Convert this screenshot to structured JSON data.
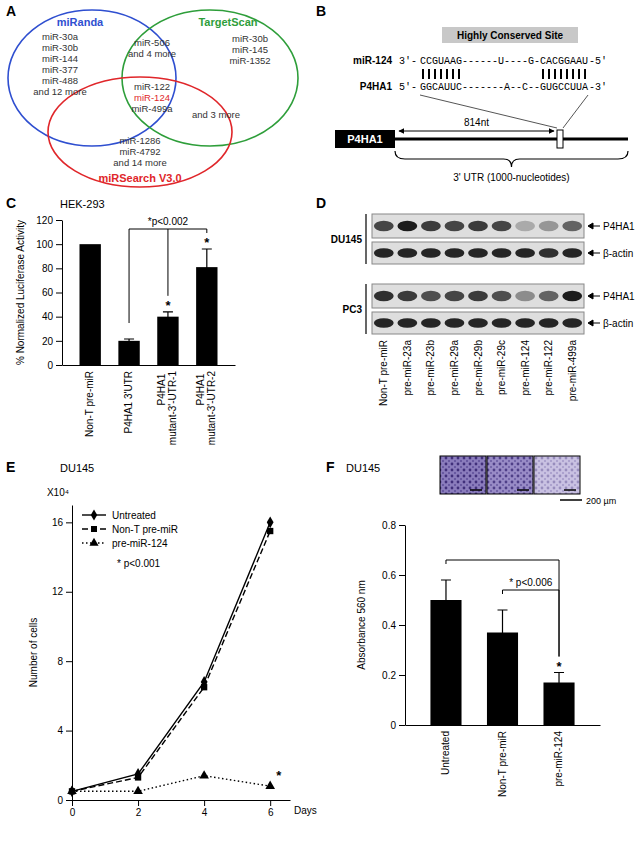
{
  "chart_data": [
    {
      "panel": "A",
      "type": "venn",
      "sets": [
        {
          "name": "miRanda",
          "color": "#2f4fd0"
        },
        {
          "name": "TargetScan",
          "color": "#2e9e3a"
        },
        {
          "name": "miRSearch V3.0",
          "color": "#e0262a"
        }
      ],
      "regions": [
        {
          "sets": [
            "miRanda"
          ],
          "labels": [
            "miR-30a",
            "miR-30b",
            "miR-144",
            "miR-377",
            "miR-488",
            "and 12 more"
          ]
        },
        {
          "sets": [
            "TargetScan"
          ],
          "labels": [
            "miR-30b",
            "miR-145",
            "miR-1352"
          ]
        },
        {
          "sets": [
            "miRanda",
            "TargetScan"
          ],
          "labels": [
            "miR-506",
            "and 4 more"
          ]
        },
        {
          "sets": [
            "miRanda",
            "TargetScan",
            "miRSearch V3.0"
          ],
          "labels": [
            "miR-122",
            "miR-124",
            "miR-499a"
          ],
          "colors": [
            "#333333",
            "#e0262a",
            "#333333"
          ]
        },
        {
          "sets": [
            "TargetScan",
            "miRSearch V3.0"
          ],
          "labels": [
            "and 3 more"
          ]
        },
        {
          "sets": [
            "miRSearch V3.0"
          ],
          "labels": [
            "miR-1286",
            "miR-4792",
            "and 14 more"
          ]
        }
      ]
    },
    {
      "panel": "B",
      "type": "diagram",
      "gene": "P4HA1",
      "site_label": "Highly Conserved Site",
      "alignment": [
        {
          "name": "miR-124",
          "start": "3'-",
          "sequence": "CCGUAAG------U----G-CACGGAAU",
          "end": "-5'"
        },
        {
          "name": "P4HA1",
          "start": "5'-",
          "sequence": "GGCAUUC-------A--C--GUGCCUUA",
          "end": "-3'"
        }
      ],
      "distance_label": "814nt",
      "utr_label": "3' UTR (1000-nucleotides)"
    },
    {
      "panel": "C",
      "type": "bar",
      "title": "HEK-293",
      "categories": [
        "Non-T pre-miR",
        "P4HA1 3'UTR",
        "P4HA1 mutant-3'-UTR-1",
        "P4HA1 mutant-3'-UTR-2"
      ],
      "values": [
        100,
        20,
        40,
        81
      ],
      "errors": [
        null,
        1.5,
        4,
        15
      ],
      "color": "#000000",
      "ylabel": "% Normalized Luciferase Activity",
      "ylim": [
        0,
        120
      ],
      "yticks": [
        0,
        20,
        40,
        60,
        80,
        100,
        120
      ],
      "significance": [
        null,
        null,
        "*",
        "*"
      ],
      "comparisons": [
        {
          "groups": [
            "P4HA1 3'UTR",
            "P4HA1 mutant-3'-UTR-1",
            "P4HA1 mutant-3'-UTR-2"
          ],
          "label": "*p<0.002"
        }
      ]
    },
    {
      "panel": "D",
      "type": "blot",
      "lanes": [
        "Non-T pre-miR",
        "pre-miR-23a",
        "pre-miR-23b",
        "pre-miR-29a",
        "pre-miR-29b",
        "pre-miR-29c",
        "pre-miR-124",
        "pre-miR-122",
        "pre-miR-499a"
      ],
      "blots": [
        {
          "cell_line": "DU145",
          "rows": [
            {
              "protein": "P4HA1",
              "intensity": [
                0.75,
                0.95,
                0.8,
                0.75,
                0.8,
                0.75,
                0.25,
                0.35,
                0.6
              ]
            },
            {
              "protein": "β-actin",
              "intensity": [
                0.9,
                0.9,
                0.9,
                0.9,
                0.9,
                0.9,
                0.9,
                0.85,
                0.9
              ]
            }
          ]
        },
        {
          "cell_line": "PC3",
          "rows": [
            {
              "protein": "P4HA1",
              "intensity": [
                0.85,
                0.8,
                0.7,
                0.75,
                0.8,
                0.7,
                0.4,
                0.6,
                0.95
              ]
            },
            {
              "protein": "β-actin",
              "intensity": [
                0.9,
                0.9,
                0.9,
                0.9,
                0.9,
                0.9,
                0.9,
                0.9,
                0.9
              ]
            }
          ]
        }
      ]
    },
    {
      "panel": "E",
      "type": "line",
      "title": "DU145",
      "x": [
        0,
        2,
        4,
        6
      ],
      "xlim": [
        0,
        6.6
      ],
      "xticks": [
        0,
        2,
        4,
        6
      ],
      "xlabel": "Days",
      "ylabel": "Number of cells",
      "ylim": [
        0,
        17
      ],
      "yticks": [
        0,
        4,
        8,
        12,
        16
      ],
      "legend": "upper left",
      "annotations": [
        {
          "text": "X10⁴"
        },
        {
          "text": "* p<0.001"
        }
      ],
      "series": [
        {
          "name": "Untreated",
          "color": "#000000",
          "marker": "diamond",
          "line_style": "solid",
          "values": [
            0.5,
            1.5,
            6.8,
            16.0
          ]
        },
        {
          "name": "Non-T pre-miR",
          "color": "#000000",
          "marker": "square",
          "line_style": "dashed",
          "values": [
            0.5,
            1.3,
            6.5,
            15.5
          ]
        },
        {
          "name": "pre-miR-124",
          "color": "#000000",
          "marker": "triangle",
          "line_style": "dotted",
          "values": [
            0.5,
            0.5,
            1.4,
            0.8
          ],
          "significance": [
            null,
            null,
            null,
            "*"
          ]
        }
      ]
    },
    {
      "panel": "F",
      "type": "bar",
      "title": "DU145",
      "categories": [
        "Untreated",
        "Non-T pre-miR",
        "pre-miR-124"
      ],
      "values": [
        0.5,
        0.37,
        0.17
      ],
      "errors": [
        0.08,
        0.09,
        0.04
      ],
      "color": "#000000",
      "ylabel": "Absorbance 560 nm",
      "ylim": [
        0,
        0.8
      ],
      "yticks": [
        0,
        0.2,
        0.4,
        0.6,
        0.8
      ],
      "significance": [
        null,
        null,
        "*"
      ],
      "comparisons": [
        {
          "groups": [
            "Untreated",
            "pre-miR-124"
          ]
        },
        {
          "groups": [
            "Non-T pre-miR",
            "pre-miR-124"
          ],
          "label": "* p<0.006"
        }
      ],
      "scale_bar": "200 µm"
    }
  ]
}
